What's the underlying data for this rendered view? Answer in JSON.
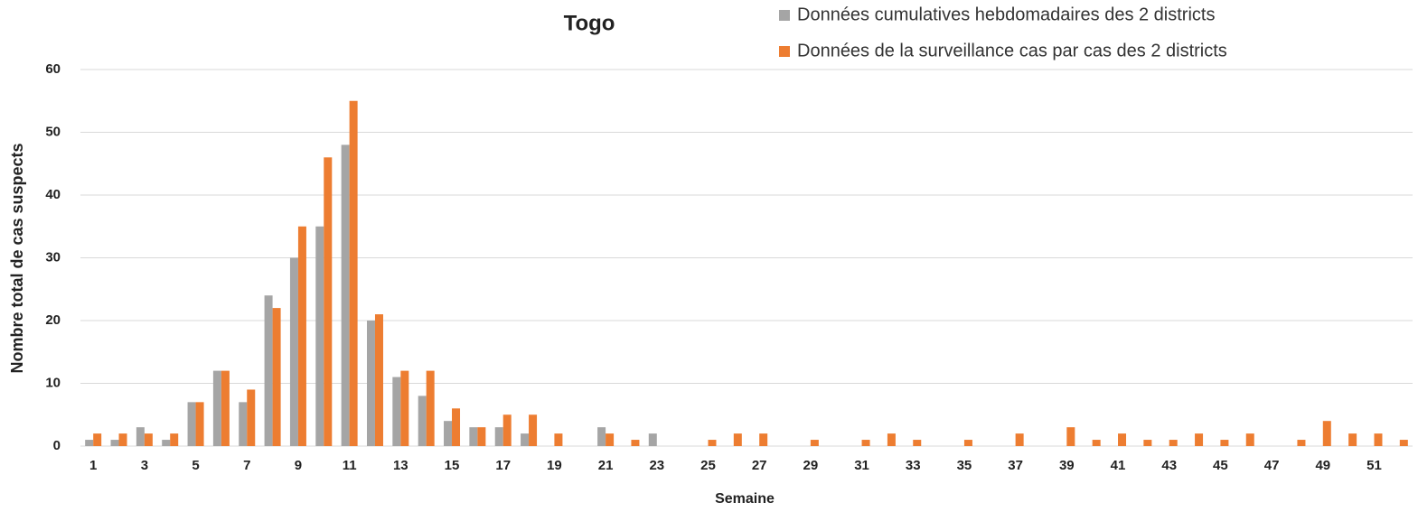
{
  "chart_data": {
    "type": "bar",
    "title": "Togo",
    "x_label": "Semaine",
    "y_label": "Nombre total de cas suspects",
    "categories": [
      1,
      null,
      3,
      null,
      5,
      null,
      7,
      null,
      9,
      null,
      11,
      null,
      13,
      null,
      15,
      null,
      17,
      null,
      19,
      null,
      21,
      null,
      23,
      null,
      25,
      null,
      27,
      null,
      29,
      null,
      31,
      null,
      33,
      null,
      35,
      null,
      37,
      null,
      39,
      null,
      41,
      null,
      43,
      null,
      45,
      null,
      47,
      null,
      49,
      null,
      51,
      null
    ],
    "series": [
      {
        "name": "Données cumulatives hebdomadaires des 2 districts",
        "color": "#a5a5a5",
        "values": [
          1,
          1,
          3,
          1,
          7,
          12,
          7,
          24,
          30,
          35,
          48,
          20,
          11,
          8,
          4,
          3,
          3,
          2,
          0,
          0,
          3,
          0,
          2,
          0,
          0,
          0,
          0,
          0,
          0,
          0,
          0,
          0,
          0,
          0,
          0,
          0,
          0,
          0,
          0,
          0,
          0,
          0,
          0,
          0,
          0,
          0,
          0,
          0,
          0,
          0,
          0,
          0
        ]
      },
      {
        "name": "Données de la surveillance cas par cas des 2 districts",
        "color": "#ed7d31",
        "values": [
          2,
          2,
          2,
          2,
          7,
          12,
          9,
          22,
          35,
          46,
          55,
          21,
          12,
          12,
          6,
          3,
          5,
          5,
          2,
          0,
          2,
          1,
          0,
          0,
          1,
          2,
          2,
          0,
          1,
          0,
          1,
          2,
          1,
          0,
          1,
          0,
          2,
          0,
          3,
          1,
          2,
          1,
          1,
          2,
          1,
          2,
          0,
          1,
          4,
          2,
          2,
          1
        ]
      }
    ],
    "ylim": [
      0,
      60
    ],
    "yticks": [
      0,
      10,
      20,
      30,
      40,
      50,
      60
    ],
    "grid": true
  }
}
